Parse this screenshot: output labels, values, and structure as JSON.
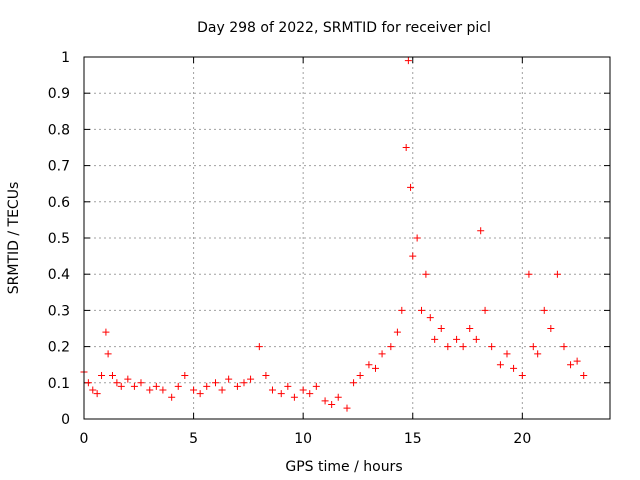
{
  "chart_data": {
    "type": "scatter",
    "title": "Day 298 of 2022, SRMTID for receiver picl",
    "xlabel": "GPS time / hours",
    "ylabel": "SRMTID / TECUs",
    "xlim": [
      0,
      24
    ],
    "ylim": [
      0,
      1
    ],
    "xticks": [
      0,
      5,
      10,
      15,
      20
    ],
    "xtick_labels": [
      "0",
      "5",
      "10",
      "15",
      "20"
    ],
    "yticks": [
      0,
      0.1,
      0.2,
      0.3,
      0.4,
      0.5,
      0.6,
      0.7,
      0.8,
      0.9,
      1
    ],
    "ytick_labels": [
      "0",
      "0.1",
      "0.2",
      "0.3",
      "0.4",
      "0.5",
      "0.6",
      "0.7",
      "0.8",
      "0.9",
      "1"
    ],
    "grid": true,
    "marker": "+",
    "color": "#ff0000",
    "series": [
      {
        "name": "SRMTID",
        "x": [
          0.0,
          0.2,
          0.4,
          0.6,
          0.8,
          1.0,
          1.1,
          1.3,
          1.5,
          1.7,
          2.0,
          2.3,
          2.6,
          3.0,
          3.3,
          3.6,
          4.0,
          4.3,
          4.6,
          5.0,
          5.3,
          5.6,
          6.0,
          6.3,
          6.6,
          7.0,
          7.3,
          7.6,
          8.0,
          8.3,
          8.6,
          9.0,
          9.3,
          9.6,
          10.0,
          10.3,
          10.6,
          11.0,
          11.3,
          11.6,
          12.0,
          12.3,
          12.6,
          13.0,
          13.3,
          13.6,
          14.0,
          14.3,
          14.5,
          14.7,
          14.8,
          14.9,
          15.0,
          15.2,
          15.4,
          15.6,
          15.8,
          16.0,
          16.3,
          16.6,
          17.0,
          17.3,
          17.6,
          17.9,
          18.1,
          18.3,
          18.6,
          19.0,
          19.3,
          19.6,
          20.0,
          20.3,
          20.5,
          20.7,
          21.0,
          21.3,
          21.6,
          21.9,
          22.2,
          22.5,
          22.8
        ],
        "y": [
          0.13,
          0.1,
          0.08,
          0.07,
          0.12,
          0.24,
          0.18,
          0.12,
          0.1,
          0.09,
          0.11,
          0.09,
          0.1,
          0.08,
          0.09,
          0.08,
          0.06,
          0.09,
          0.12,
          0.08,
          0.07,
          0.09,
          0.1,
          0.08,
          0.11,
          0.09,
          0.1,
          0.11,
          0.2,
          0.12,
          0.08,
          0.07,
          0.09,
          0.06,
          0.08,
          0.07,
          0.09,
          0.05,
          0.04,
          0.06,
          0.03,
          0.1,
          0.12,
          0.15,
          0.14,
          0.18,
          0.2,
          0.24,
          0.3,
          0.75,
          0.99,
          0.64,
          0.45,
          0.5,
          0.3,
          0.4,
          0.28,
          0.22,
          0.25,
          0.2,
          0.22,
          0.2,
          0.25,
          0.22,
          0.52,
          0.3,
          0.2,
          0.15,
          0.18,
          0.14,
          0.12,
          0.4,
          0.2,
          0.18,
          0.3,
          0.25,
          0.4,
          0.2,
          0.15,
          0.16,
          0.12
        ]
      }
    ]
  }
}
